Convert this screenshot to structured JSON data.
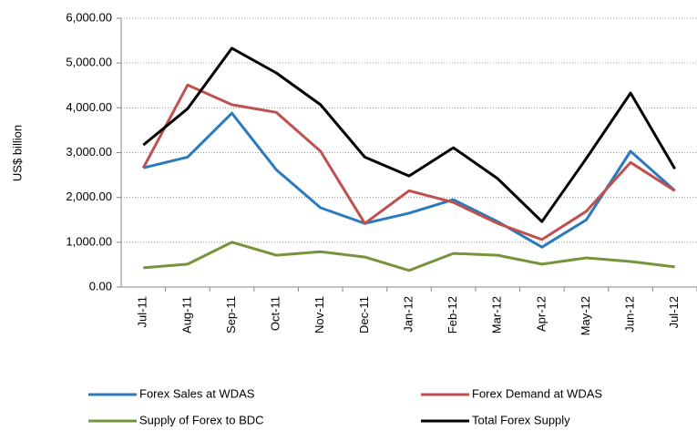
{
  "chart_data": {
    "type": "line",
    "y_label": "US$ billion",
    "categories": [
      "Jul-11",
      "Aug-11",
      "Sep-11",
      "Oct-11",
      "Nov-11",
      "Dec-11",
      "Jan-12",
      "Feb-12",
      "Mar-12",
      "Apr-12",
      "May-12",
      "Jun-12",
      "Jul-12"
    ],
    "series": [
      {
        "name": "Forex Sales at WDAS",
        "color": "#2a7abf",
        "values": [
          2660,
          2900,
          3880,
          2620,
          1770,
          1420,
          1650,
          1950,
          1460,
          890,
          1500,
          3030,
          2150
        ]
      },
      {
        "name": "Forex Demand at WDAS",
        "color": "#c0504d",
        "values": [
          2660,
          4510,
          4070,
          3900,
          3030,
          1420,
          2150,
          1890,
          1420,
          1060,
          1690,
          2780,
          2150
        ]
      },
      {
        "name": "Supply of Forex to BDC",
        "color": "#77933c",
        "values": [
          430,
          510,
          1000,
          710,
          790,
          670,
          370,
          750,
          710,
          510,
          650,
          570,
          450
        ]
      },
      {
        "name": "Total Forex Supply",
        "color": "#000000",
        "values": [
          3170,
          3980,
          5330,
          4780,
          4070,
          2900,
          2480,
          3110,
          2420,
          1460,
          2870,
          4330,
          2640
        ]
      }
    ],
    "ylim": [
      0,
      6000
    ],
    "yticks": [
      {
        "value": 0,
        "label": "0.00"
      },
      {
        "value": 1000,
        "label": "1,000.00"
      },
      {
        "value": 2000,
        "label": "2,000.00"
      },
      {
        "value": 3000,
        "label": "3,000.00"
      },
      {
        "value": 4000,
        "label": "4,000.00"
      },
      {
        "value": 5000,
        "label": "5,000.00"
      },
      {
        "value": 6000,
        "label": "6,000.00"
      }
    ],
    "grid": true
  }
}
